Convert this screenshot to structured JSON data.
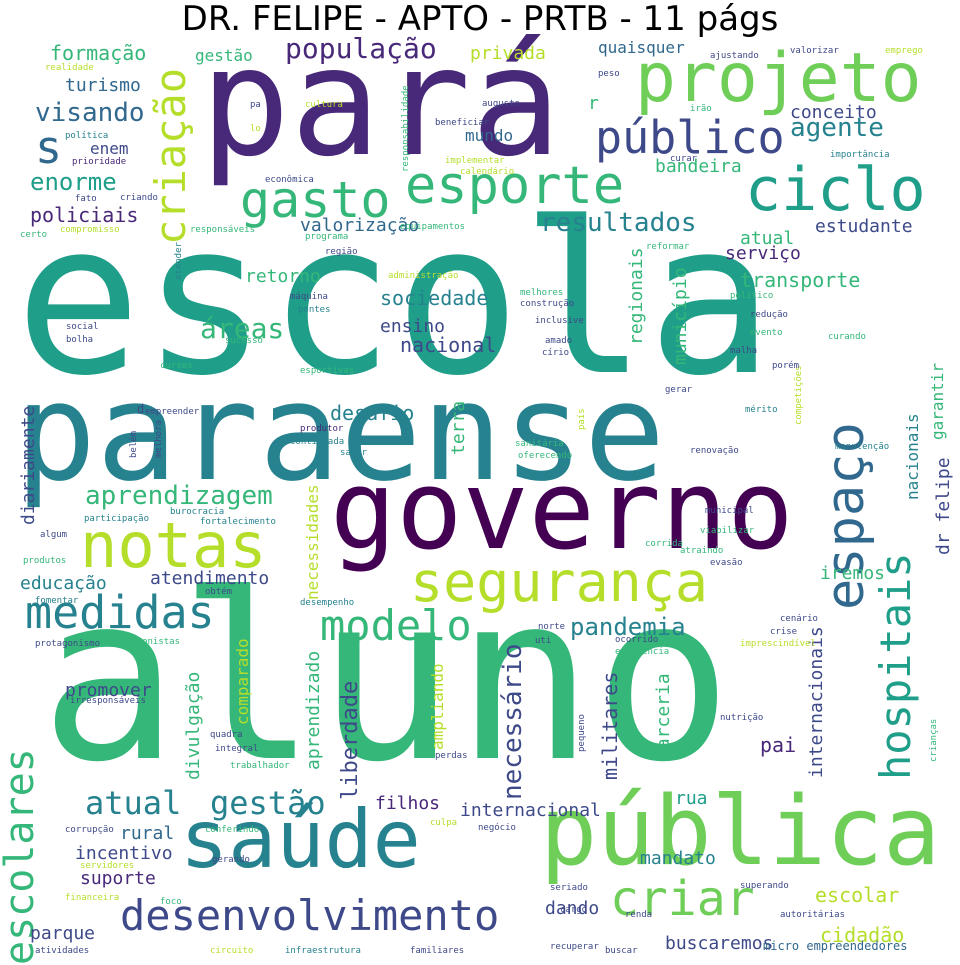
{
  "title": "DR. FELIPE - APTO - PRTB - 11 págs",
  "words": [
    {
      "text": "escola",
      "color": "#1f9e89"
    },
    {
      "text": "aluno",
      "color": "#35b779"
    },
    {
      "text": "paraense",
      "color": "#26828e"
    },
    {
      "text": "pará",
      "color": "#482878"
    },
    {
      "text": "governo",
      "color": "#440154"
    },
    {
      "text": "pública",
      "color": "#6ece58"
    },
    {
      "text": "saúde",
      "color": "#26828e"
    },
    {
      "text": "projeto",
      "color": "#6ece58"
    },
    {
      "text": "notas",
      "color": "#b5de2b"
    },
    {
      "text": "segurança",
      "color": "#b5de2b"
    },
    {
      "text": "ciclo",
      "color": "#1f9e89"
    },
    {
      "text": "esporte",
      "color": "#35b779"
    },
    {
      "text": "gasto",
      "color": "#35b779"
    },
    {
      "text": "público",
      "color": "#3e4989"
    },
    {
      "text": "criação",
      "color": "#b5de2b"
    },
    {
      "text": "espaço",
      "color": "#31688e"
    },
    {
      "text": "hospitais",
      "color": "#1f9e89"
    },
    {
      "text": "medidas",
      "color": "#26828e"
    },
    {
      "text": "desenvolvimento",
      "color": "#3e4989"
    },
    {
      "text": "criar",
      "color": "#6ece58"
    },
    {
      "text": "escolares",
      "color": "#35b779"
    },
    {
      "text": "modelo",
      "color": "#35b779"
    },
    {
      "text": "atual",
      "color": "#26828e"
    },
    {
      "text": "gestão",
      "color": "#26828e"
    },
    {
      "text": "população",
      "color": "#482878"
    },
    {
      "text": "visando",
      "color": "#31688e"
    },
    {
      "text": "enorme",
      "color": "#1f9e89"
    },
    {
      "text": "agente",
      "color": "#26828e"
    },
    {
      "text": "áreas",
      "color": "#35b779"
    },
    {
      "text": "resultados",
      "color": "#26828e"
    },
    {
      "text": "aprendizagem",
      "color": "#35b779"
    },
    {
      "text": "necessário",
      "color": "#3e4989"
    },
    {
      "text": "pandemia",
      "color": "#26828e"
    },
    {
      "text": "s",
      "color": "#31688e"
    },
    {
      "text": "formação",
      "color": "#35b779"
    },
    {
      "text": "gestão",
      "color": "#35b779"
    },
    {
      "text": "privada",
      "color": "#b5de2b"
    },
    {
      "text": "quaisquer",
      "color": "#31688e"
    },
    {
      "text": "turismo",
      "color": "#31688e"
    },
    {
      "text": "enem",
      "color": "#3e4989"
    },
    {
      "text": "policiais",
      "color": "#482878"
    },
    {
      "text": "conceito",
      "color": "#3e4989"
    },
    {
      "text": "mundo",
      "color": "#31688e"
    },
    {
      "text": "bandeira",
      "color": "#35b779"
    },
    {
      "text": "valorização",
      "color": "#31688e"
    },
    {
      "text": "estudante",
      "color": "#3e4989"
    },
    {
      "text": "atual",
      "color": "#35b779"
    },
    {
      "text": "serviço",
      "color": "#482878"
    },
    {
      "text": "transporte",
      "color": "#35b779"
    },
    {
      "text": "retorno",
      "color": "#35b779"
    },
    {
      "text": "sociedade",
      "color": "#26828e"
    },
    {
      "text": "ensino",
      "color": "#3e4989"
    },
    {
      "text": "nacional",
      "color": "#3e4989"
    },
    {
      "text": "regionais",
      "color": "#35b779"
    },
    {
      "text": "município",
      "color": "#35b779"
    },
    {
      "text": "desafio",
      "color": "#26828e"
    },
    {
      "text": "terra",
      "color": "#35b779"
    },
    {
      "text": "necessidades",
      "color": "#b5de2b"
    },
    {
      "text": "liberdade",
      "color": "#3e4989"
    },
    {
      "text": "educação",
      "color": "#26828e"
    },
    {
      "text": "atendimento",
      "color": "#3e4989"
    },
    {
      "text": "iremos",
      "color": "#35b779"
    },
    {
      "text": "promover",
      "color": "#3e4989"
    },
    {
      "text": "divulgação",
      "color": "#35b779"
    },
    {
      "text": "comparado",
      "color": "#b5de2b"
    },
    {
      "text": "aprendizado",
      "color": "#35b779"
    },
    {
      "text": "ampliando",
      "color": "#b5de2b"
    },
    {
      "text": "militares",
      "color": "#3e4989"
    },
    {
      "text": "parceria",
      "color": "#35b779"
    },
    {
      "text": "pai",
      "color": "#482878"
    },
    {
      "text": "internacionais",
      "color": "#3e4989"
    },
    {
      "text": "nacionais",
      "color": "#26828e"
    },
    {
      "text": "garantir",
      "color": "#35b779"
    },
    {
      "text": "dr felipe",
      "color": "#3e4989"
    },
    {
      "text": "diariamente",
      "color": "#3e4989"
    },
    {
      "text": "filhos",
      "color": "#482878"
    },
    {
      "text": "internacional",
      "color": "#3e4989"
    },
    {
      "text": "rua",
      "color": "#1f9e89"
    },
    {
      "text": "rural",
      "color": "#31688e"
    },
    {
      "text": "incentivo",
      "color": "#3e4989"
    },
    {
      "text": "suporte",
      "color": "#482878"
    },
    {
      "text": "mandato",
      "color": "#26828e"
    },
    {
      "text": "escolar",
      "color": "#b5de2b"
    },
    {
      "text": "cidadão",
      "color": "#b5de2b"
    },
    {
      "text": "dando",
      "color": "#3e4989"
    },
    {
      "text": "parque",
      "color": "#3e4989"
    },
    {
      "text": "buscaremos",
      "color": "#3e4989"
    },
    {
      "text": "micro empreendedores",
      "color": "#31688e"
    },
    {
      "text": "realidade",
      "color": "#b5de2b"
    },
    {
      "text": "política",
      "color": "#26828e"
    },
    {
      "text": "prioridade",
      "color": "#482878"
    },
    {
      "text": "fato",
      "color": "#3e4989"
    },
    {
      "text": "criando",
      "color": "#3e4989"
    },
    {
      "text": "certo",
      "color": "#35b779"
    },
    {
      "text": "compromisso",
      "color": "#b5de2b"
    },
    {
      "text": "responsáveis",
      "color": "#35b779"
    },
    {
      "text": "programa",
      "color": "#35b779"
    },
    {
      "text": "equipamentos",
      "color": "#35b779"
    },
    {
      "text": "região",
      "color": "#3e4989"
    },
    {
      "text": "administração",
      "color": "#b5de2b"
    },
    {
      "text": "máquina",
      "color": "#3e4989"
    },
    {
      "text": "pontes",
      "color": "#26828e"
    },
    {
      "text": "social",
      "color": "#3e4989"
    },
    {
      "text": "bolha",
      "color": "#3e4989"
    },
    {
      "text": "cursos",
      "color": "#35b779"
    },
    {
      "text": "sucesso",
      "color": "#35b779"
    },
    {
      "text": "esportivas",
      "color": "#35b779"
    },
    {
      "text": "atender",
      "color": "#26828e"
    },
    {
      "text": "empreender",
      "color": "#3e4989"
    },
    {
      "text": "belém",
      "color": "#3e4989"
    },
    {
      "text": "melhora",
      "color": "#3e4989"
    },
    {
      "text": "produtor",
      "color": "#482878"
    },
    {
      "text": "continuada",
      "color": "#26828e"
    },
    {
      "text": "sanar",
      "color": "#26828e"
    },
    {
      "text": "burocracia",
      "color": "#26828e"
    },
    {
      "text": "participação",
      "color": "#26828e"
    },
    {
      "text": "fortalecimento",
      "color": "#26828e"
    },
    {
      "text": "algum",
      "color": "#3e4989"
    },
    {
      "text": "produtos",
      "color": "#35b779"
    },
    {
      "text": "obtém",
      "color": "#3e4989"
    },
    {
      "text": "fomentar",
      "color": "#26828e"
    },
    {
      "text": "desempenho",
      "color": "#26828e"
    },
    {
      "text": "protagonismo",
      "color": "#3e4989"
    },
    {
      "text": "plantonistas",
      "color": "#35b779"
    },
    {
      "text": "irresponsáveis",
      "color": "#3e4989"
    },
    {
      "text": "quadra",
      "color": "#3e4989"
    },
    {
      "text": "integral",
      "color": "#3e4989"
    },
    {
      "text": "trabalhador",
      "color": "#35b779"
    },
    {
      "text": "corrupção",
      "color": "#3e4989"
    },
    {
      "text": "conferindo",
      "color": "#35b779"
    },
    {
      "text": "servidores",
      "color": "#b5de2b"
    },
    {
      "text": "gerando",
      "color": "#3e4989"
    },
    {
      "text": "financeira",
      "color": "#b5de2b"
    },
    {
      "text": "foco",
      "color": "#35b779"
    },
    {
      "text": "atividades",
      "color": "#3e4989"
    },
    {
      "text": "circuito",
      "color": "#b5de2b"
    },
    {
      "text": "infraestrutura",
      "color": "#26828e"
    },
    {
      "text": "familiares",
      "color": "#3e4989"
    },
    {
      "text": "recuperar",
      "color": "#3e4989"
    },
    {
      "text": "buscar",
      "color": "#3e4989"
    },
    {
      "text": "seriado",
      "color": "#3e4989"
    },
    {
      "text": "cargo",
      "color": "#3e4989"
    },
    {
      "text": "negócio",
      "color": "#3e4989"
    },
    {
      "text": "culpa",
      "color": "#b5de2b"
    },
    {
      "text": "renda",
      "color": "#3e4989"
    },
    {
      "text": "superando",
      "color": "#3e4989"
    },
    {
      "text": "autoritárias",
      "color": "#3e4989"
    },
    {
      "text": "pequeno",
      "color": "#3e4989"
    },
    {
      "text": "perdas",
      "color": "#3e4989"
    },
    {
      "text": "nutrição",
      "color": "#3e4989"
    },
    {
      "text": "crianças",
      "color": "#35b779"
    },
    {
      "text": "norte",
      "color": "#3e4989"
    },
    {
      "text": "uti",
      "color": "#3e4989"
    },
    {
      "text": "ocorrido",
      "color": "#3e4989"
    },
    {
      "text": "emergência",
      "color": "#35b779"
    },
    {
      "text": "cenário",
      "color": "#3e4989"
    },
    {
      "text": "crise",
      "color": "#3e4989"
    },
    {
      "text": "imprescindível",
      "color": "#b5de2b"
    },
    {
      "text": "municipal",
      "color": "#3e4989"
    },
    {
      "text": "viabilizar",
      "color": "#35b779"
    },
    {
      "text": "corrida",
      "color": "#35b779"
    },
    {
      "text": "atraindo",
      "color": "#35b779"
    },
    {
      "text": "evasão",
      "color": "#3e4989"
    },
    {
      "text": "renovação",
      "color": "#3e4989"
    },
    {
      "text": "manutenção",
      "color": "#26828e"
    },
    {
      "text": "mérito",
      "color": "#26828e"
    },
    {
      "text": "competições",
      "color": "#b5de2b"
    },
    {
      "text": "gerar",
      "color": "#3e4989"
    },
    {
      "text": "porém",
      "color": "#3e4989"
    },
    {
      "text": "malha",
      "color": "#3e4989"
    },
    {
      "text": "evento",
      "color": "#35b779"
    },
    {
      "text": "curando",
      "color": "#35b779"
    },
    {
      "text": "redução",
      "color": "#3e4989"
    },
    {
      "text": "político",
      "color": "#35b779"
    },
    {
      "text": "sanitária",
      "color": "#35b779"
    },
    {
      "text": "oferecendo",
      "color": "#35b779"
    },
    {
      "text": "país",
      "color": "#b5de2b"
    },
    {
      "text": "amado",
      "color": "#3e4989"
    },
    {
      "text": "círio",
      "color": "#3e4989"
    },
    {
      "text": "inclusive",
      "color": "#3e4989"
    },
    {
      "text": "construção",
      "color": "#3e4989"
    },
    {
      "text": "melhores",
      "color": "#35b779"
    },
    {
      "text": "reformar",
      "color": "#35b779"
    },
    {
      "text": "responsabilidade",
      "color": "#35b779"
    },
    {
      "text": "cultura",
      "color": "#b5de2b"
    },
    {
      "text": "pa",
      "color": "#3e4989"
    },
    {
      "text": "lo",
      "color": "#b5de2b"
    },
    {
      "text": "augusto",
      "color": "#3e4989"
    },
    {
      "text": "beneficiar",
      "color": "#3e4989"
    },
    {
      "text": "implementar",
      "color": "#b5de2b"
    },
    {
      "text": "calendário",
      "color": "#b5de2b"
    },
    {
      "text": "econômica",
      "color": "#3e4989"
    },
    {
      "text": "ajustando",
      "color": "#3e4989"
    },
    {
      "text": "valorizar",
      "color": "#3e4989"
    },
    {
      "text": "emprego",
      "color": "#b5de2b"
    },
    {
      "text": "peso",
      "color": "#3e4989"
    },
    {
      "text": "irão",
      "color": "#35b779"
    },
    {
      "text": "curar",
      "color": "#3e4989"
    },
    {
      "text": "importância",
      "color": "#26828e"
    },
    {
      "text": "r",
      "color": "#35b779"
    },
    {
      "text": "d",
      "color": "#3e4989"
    }
  ]
}
